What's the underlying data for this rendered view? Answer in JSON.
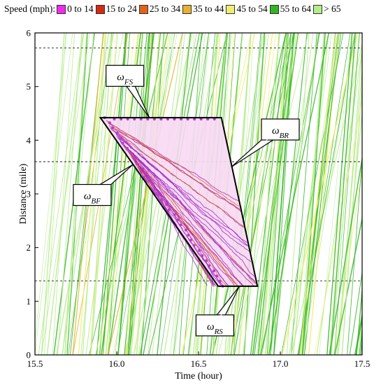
{
  "legend": {
    "title": "Speed (mph):",
    "items": [
      {
        "label": "0 to 14",
        "color": "#ee2cee"
      },
      {
        "label": "15 to 24",
        "color": "#d42a12"
      },
      {
        "label": "25 to 34",
        "color": "#e0641a"
      },
      {
        "label": "35 to 44",
        "color": "#e6b12e"
      },
      {
        "label": "45 to 54",
        "color": "#f0ee70"
      },
      {
        "label": "55 to 64",
        "color": "#32b423"
      },
      {
        "label": "> 65",
        "color": "#b4ec8a"
      }
    ]
  },
  "chart_data": {
    "type": "scatter",
    "xlabel": "Time (hour)",
    "ylabel": "Distance (mile)",
    "xlim": [
      15.5,
      17.5
    ],
    "ylim": [
      0,
      6
    ],
    "xticks": [
      "15.5",
      "16.0",
      "16.5",
      "17.0",
      "17.5"
    ],
    "yticks": [
      "0",
      "1",
      "2",
      "3",
      "4",
      "5",
      "6"
    ],
    "dashed_lines_y": [
      1.38,
      3.6,
      5.72
    ],
    "queue_polygon": [
      [
        15.9,
        4.42
      ],
      [
        16.64,
        4.42
      ],
      [
        16.86,
        1.28
      ],
      [
        16.62,
        1.28
      ]
    ],
    "annotations": [
      {
        "label": "ω",
        "sub": "FS",
        "point": [
          16.2,
          4.42
        ],
        "box": [
          16.05,
          5.2
        ]
      },
      {
        "label": "ω",
        "sub": "BR",
        "point": [
          16.7,
          3.5
        ],
        "box": [
          17.0,
          4.2
        ]
      },
      {
        "label": "ω",
        "sub": "BF",
        "point": [
          16.1,
          3.55
        ],
        "box": [
          15.85,
          2.98
        ]
      },
      {
        "label": "ω",
        "sub": "RS",
        "point": [
          16.75,
          1.28
        ],
        "box": [
          16.6,
          0.55
        ]
      }
    ]
  }
}
